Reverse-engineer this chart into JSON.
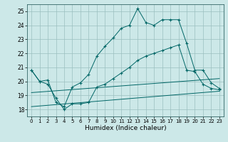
{
  "xlabel": "Humidex (Indice chaleur)",
  "xlim": [
    -0.5,
    23.5
  ],
  "ylim": [
    17.5,
    25.5
  ],
  "yticks": [
    18,
    19,
    20,
    21,
    22,
    23,
    24,
    25
  ],
  "xticks": [
    0,
    1,
    2,
    3,
    4,
    5,
    6,
    7,
    8,
    9,
    10,
    11,
    12,
    13,
    14,
    15,
    16,
    17,
    18,
    19,
    20,
    21,
    22,
    23
  ],
  "background_color": "#cce8e8",
  "grid_color": "#9bbfbf",
  "line_color": "#006666",
  "line1": [
    20.8,
    20.0,
    20.1,
    18.5,
    18.2,
    19.6,
    19.9,
    20.5,
    21.8,
    22.5,
    23.1,
    23.8,
    24.0,
    25.2,
    24.2,
    24.0,
    24.4,
    24.4,
    24.4,
    22.7,
    20.8,
    20.8,
    19.9,
    19.5
  ],
  "line2": [
    20.8,
    20.0,
    19.8,
    18.8,
    18.0,
    18.4,
    18.4,
    18.5,
    19.6,
    19.8,
    20.2,
    20.6,
    21.0,
    21.5,
    21.8,
    22.0,
    22.2,
    22.4,
    22.6,
    20.8,
    20.7,
    19.8,
    19.5,
    19.4
  ],
  "line3_x": [
    0,
    23
  ],
  "line3_y": [
    19.2,
    20.2
  ],
  "line4_x": [
    0,
    23
  ],
  "line4_y": [
    18.2,
    19.3
  ]
}
